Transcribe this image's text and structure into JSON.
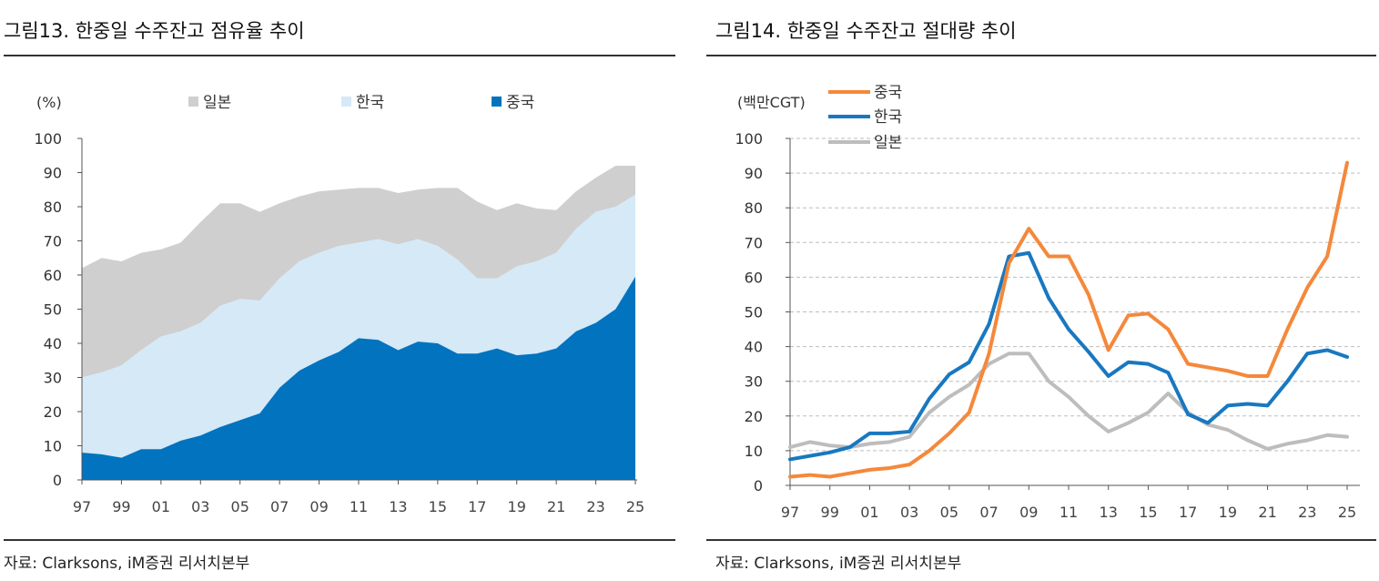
{
  "colors": {
    "japan_area": "#cfcfcf",
    "korea_area": "#d5e9f7",
    "china_area": "#0173bf",
    "china_line": "#f5883b",
    "korea_line": "#1878c0",
    "japan_line": "#bdbdbd"
  },
  "left": {
    "title": "그림13. 한중일 수주잔고 점유율 추이",
    "source": "자료: Clarksons, iM증권 리서치본부",
    "chart_data": {
      "type": "area",
      "stacked": true,
      "title": "그림13. 한중일 수주잔고 점유율 추이",
      "ylabel": "(%)",
      "ylim": [
        0,
        100
      ],
      "yticks": [
        0,
        10,
        20,
        30,
        40,
        50,
        60,
        70,
        80,
        90,
        100
      ],
      "x": [
        1997,
        1998,
        1999,
        2000,
        2001,
        2002,
        2003,
        2004,
        2005,
        2006,
        2007,
        2008,
        2009,
        2010,
        2011,
        2012,
        2013,
        2014,
        2015,
        2016,
        2017,
        2018,
        2019,
        2020,
        2021,
        2022,
        2023,
        2024,
        2025
      ],
      "xtick_labels": [
        "97",
        "99",
        "01",
        "03",
        "05",
        "07",
        "09",
        "11",
        "13",
        "15",
        "17",
        "19",
        "21",
        "23",
        "25"
      ],
      "legend": [
        "일본",
        "한국",
        "중국"
      ],
      "series": [
        {
          "name": "중국",
          "values": [
            8,
            7.5,
            6.5,
            9,
            9,
            11.5,
            13,
            15.5,
            17.5,
            19.5,
            27,
            32,
            35,
            37.5,
            41.5,
            41,
            38,
            40.5,
            40,
            37,
            37,
            38.5,
            36.5,
            37,
            38.5,
            43.5,
            46,
            50,
            59.5
          ]
        },
        {
          "name": "한국",
          "values": [
            22,
            24,
            27,
            29,
            33,
            32,
            33,
            35.5,
            35.5,
            33,
            32,
            32,
            31.5,
            31,
            28,
            29.5,
            31,
            30,
            28.5,
            27.5,
            22,
            20.5,
            26,
            27,
            28,
            30,
            32.5,
            30,
            24
          ]
        },
        {
          "name": "일본",
          "values": [
            32,
            33.5,
            30.5,
            28.5,
            25.5,
            26,
            29.5,
            30,
            28,
            26,
            22,
            19,
            18,
            16.5,
            16,
            15,
            15,
            14.5,
            17,
            21,
            22.5,
            20,
            18.5,
            15.5,
            12.5,
            11,
            10,
            12,
            8.5
          ]
        }
      ]
    }
  },
  "right": {
    "title": "그림14. 한중일 수주잔고 절대량 추이",
    "source": "자료: Clarksons, iM증권 리서치본부",
    "chart_data": {
      "type": "line",
      "title": "그림14. 한중일 수주잔고 절대량 추이",
      "ylabel": "(백만CGT)",
      "ylim": [
        0,
        100
      ],
      "yticks": [
        0,
        10,
        20,
        30,
        40,
        50,
        60,
        70,
        80,
        90,
        100
      ],
      "grid": true,
      "x": [
        1997,
        1998,
        1999,
        2000,
        2001,
        2002,
        2003,
        2004,
        2005,
        2006,
        2007,
        2008,
        2009,
        2010,
        2011,
        2012,
        2013,
        2014,
        2015,
        2016,
        2017,
        2018,
        2019,
        2020,
        2021,
        2022,
        2023,
        2024,
        2025
      ],
      "xtick_labels": [
        "97",
        "99",
        "01",
        "03",
        "05",
        "07",
        "09",
        "11",
        "13",
        "15",
        "17",
        "19",
        "21",
        "23",
        "25"
      ],
      "legend": [
        "중국",
        "한국",
        "일본"
      ],
      "series": [
        {
          "name": "중국",
          "values": [
            2.5,
            3,
            2.5,
            3.5,
            4.5,
            5,
            6,
            10,
            15,
            21,
            38,
            64,
            74,
            66,
            66,
            55,
            39,
            49,
            49.5,
            45,
            35,
            34,
            33,
            31.5,
            31.5,
            45,
            57,
            66,
            93
          ]
        },
        {
          "name": "한국",
          "values": [
            7.5,
            8.5,
            9.5,
            11,
            15,
            15,
            15.5,
            25,
            32,
            35.5,
            46.5,
            66,
            67,
            54,
            45,
            38.5,
            31.5,
            35.5,
            35,
            32.5,
            20.5,
            18,
            23,
            23.5,
            23,
            30,
            38,
            39,
            37
          ]
        },
        {
          "name": "일본",
          "values": [
            11,
            12.5,
            11.5,
            11,
            12,
            12.5,
            14,
            21,
            25.5,
            29,
            35,
            38,
            38,
            30,
            25.5,
            20,
            15.5,
            18,
            21,
            26.5,
            21,
            17.5,
            16,
            13,
            10.5,
            12,
            13,
            14.5,
            14
          ]
        }
      ]
    }
  }
}
